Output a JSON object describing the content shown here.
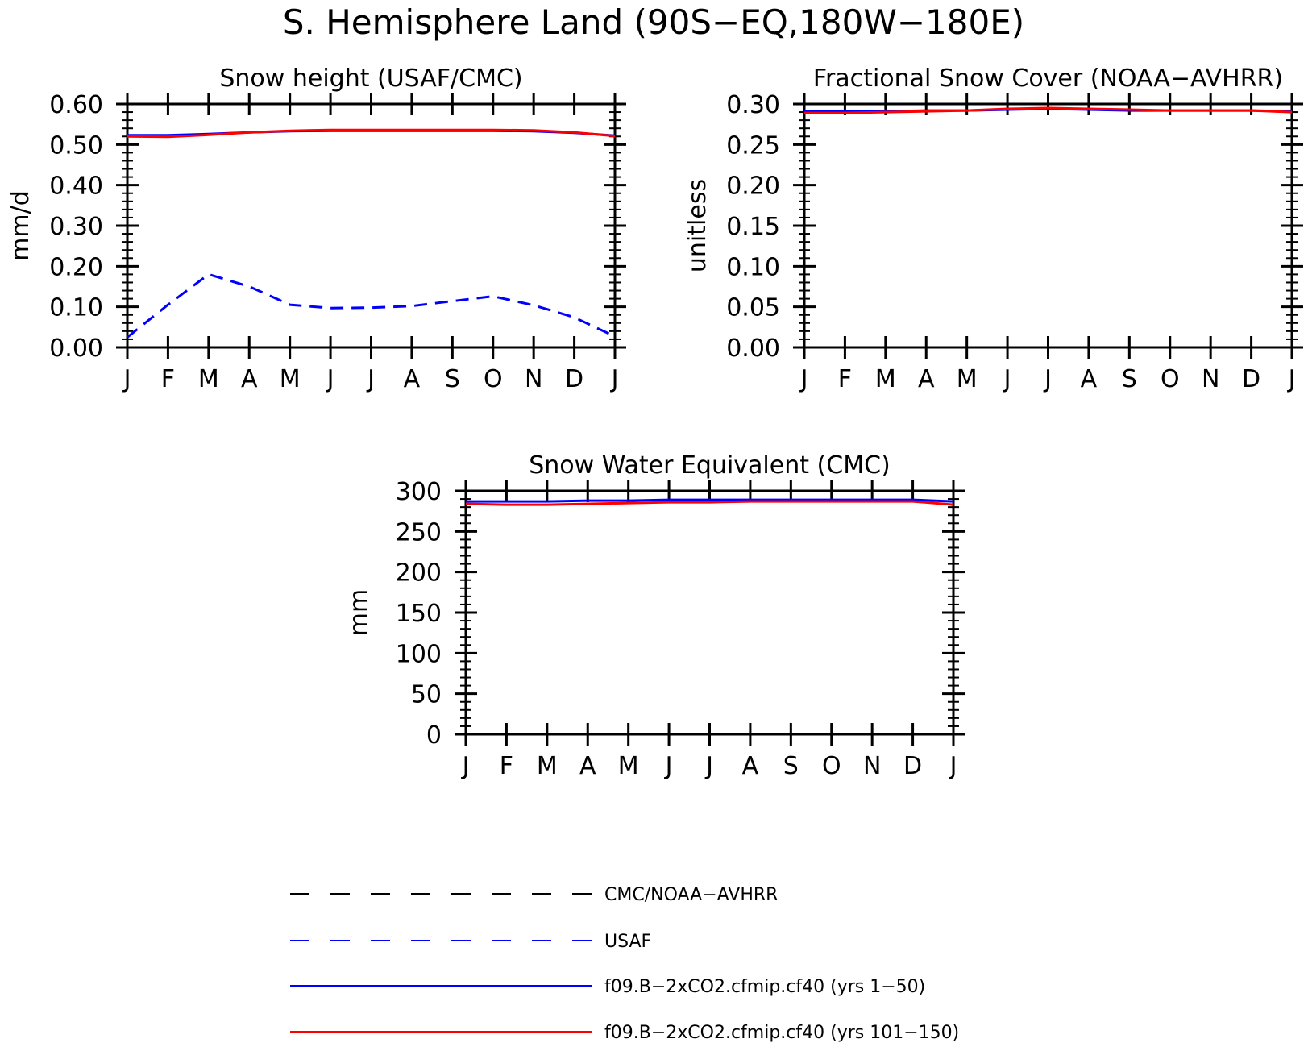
{
  "figure": {
    "title": "S. Hemisphere Land (90S−EQ,180W−180E)"
  },
  "month_labels": [
    "J",
    "F",
    "M",
    "A",
    "M",
    "J",
    "J",
    "A",
    "S",
    "O",
    "N",
    "D",
    "J"
  ],
  "legend": [
    {
      "label": "CMC/NOAA−AVHRR",
      "color": "#000000",
      "style": "dashed"
    },
    {
      "label": "USAF",
      "color": "#0000ff",
      "style": "dashed"
    },
    {
      "label": "f09.B−2xCO2.cfmip.cf40 (yrs 1−50)",
      "color": "#0000ff",
      "style": "solid"
    },
    {
      "label": "f09.B−2xCO2.cfmip.cf40 (yrs 101−150)",
      "color": "#ff0000",
      "style": "solid"
    }
  ],
  "chart_data": [
    {
      "type": "line",
      "title": "Snow height (USAF/CMC)",
      "ylabel": "mm/d",
      "ylim": [
        0,
        0.6
      ],
      "yticks": [
        "0.00",
        "0.10",
        "0.20",
        "0.30",
        "0.40",
        "0.50",
        "0.60"
      ],
      "minor_per_major": 5,
      "x": [
        "J",
        "F",
        "M",
        "A",
        "M",
        "J",
        "J",
        "A",
        "S",
        "O",
        "N",
        "D",
        "J"
      ],
      "series": [
        {
          "name": "USAF",
          "color": "#0000ff",
          "style": "dashed",
          "values": [
            0.025,
            0.105,
            0.18,
            0.15,
            0.105,
            0.097,
            0.098,
            0.102,
            0.114,
            0.126,
            0.104,
            0.074,
            0.027
          ]
        },
        {
          "name": "f09.B−2xCO2.cfmip.cf40 (yrs 1−50)",
          "color": "#0000ff",
          "style": "solid",
          "values": [
            0.523,
            0.523,
            0.526,
            0.53,
            0.533,
            0.534,
            0.534,
            0.534,
            0.534,
            0.534,
            0.533,
            0.529,
            0.522
          ]
        },
        {
          "name": "f09.B−2xCO2.cfmip.cf40 (yrs 101−150)",
          "color": "#ff0000",
          "style": "solid",
          "values": [
            0.52,
            0.519,
            0.524,
            0.53,
            0.534,
            0.536,
            0.536,
            0.536,
            0.536,
            0.536,
            0.535,
            0.53,
            0.521
          ]
        }
      ]
    },
    {
      "type": "line",
      "title": "Fractional Snow Cover (NOAA−AVHRR)",
      "ylabel": "unitless",
      "ylim": [
        0,
        0.3
      ],
      "yticks": [
        "0.00",
        "0.05",
        "0.10",
        "0.15",
        "0.20",
        "0.25",
        "0.30"
      ],
      "minor_per_major": 5,
      "x": [
        "J",
        "F",
        "M",
        "A",
        "M",
        "J",
        "J",
        "A",
        "S",
        "O",
        "N",
        "D",
        "J"
      ],
      "series": [
        {
          "name": "f09.B−2xCO2.cfmip.cf40 (yrs 1−50)",
          "color": "#0000ff",
          "style": "solid",
          "values": [
            0.291,
            0.291,
            0.291,
            0.292,
            0.292,
            0.293,
            0.294,
            0.293,
            0.292,
            0.292,
            0.292,
            0.292,
            0.291
          ]
        },
        {
          "name": "f09.B−2xCO2.cfmip.cf40 (yrs 101−150)",
          "color": "#ff0000",
          "style": "solid",
          "values": [
            0.289,
            0.289,
            0.29,
            0.291,
            0.292,
            0.294,
            0.295,
            0.294,
            0.293,
            0.292,
            0.292,
            0.292,
            0.29
          ]
        }
      ]
    },
    {
      "type": "line",
      "title": "Snow Water Equivalent (CMC)",
      "ylabel": "mm",
      "ylim": [
        0,
        300
      ],
      "yticks": [
        "0",
        "50",
        "100",
        "150",
        "200",
        "250",
        "300"
      ],
      "minor_per_major": 5,
      "x": [
        "J",
        "F",
        "M",
        "A",
        "M",
        "J",
        "J",
        "A",
        "S",
        "O",
        "N",
        "D",
        "J"
      ],
      "series": [
        {
          "name": "f09.B−2xCO2.cfmip.cf40 (yrs 1−50)",
          "color": "#0000ff",
          "style": "solid",
          "values": [
            287,
            287,
            287,
            288,
            288,
            289,
            289,
            289,
            289,
            289,
            289,
            289,
            287
          ]
        },
        {
          "name": "f09.B−2xCO2.cfmip.cf40 (yrs 101−150)",
          "color": "#ff0000",
          "style": "solid",
          "values": [
            284,
            283,
            283,
            284,
            285,
            286,
            286,
            287,
            287,
            287,
            287,
            287,
            283
          ]
        }
      ]
    }
  ]
}
